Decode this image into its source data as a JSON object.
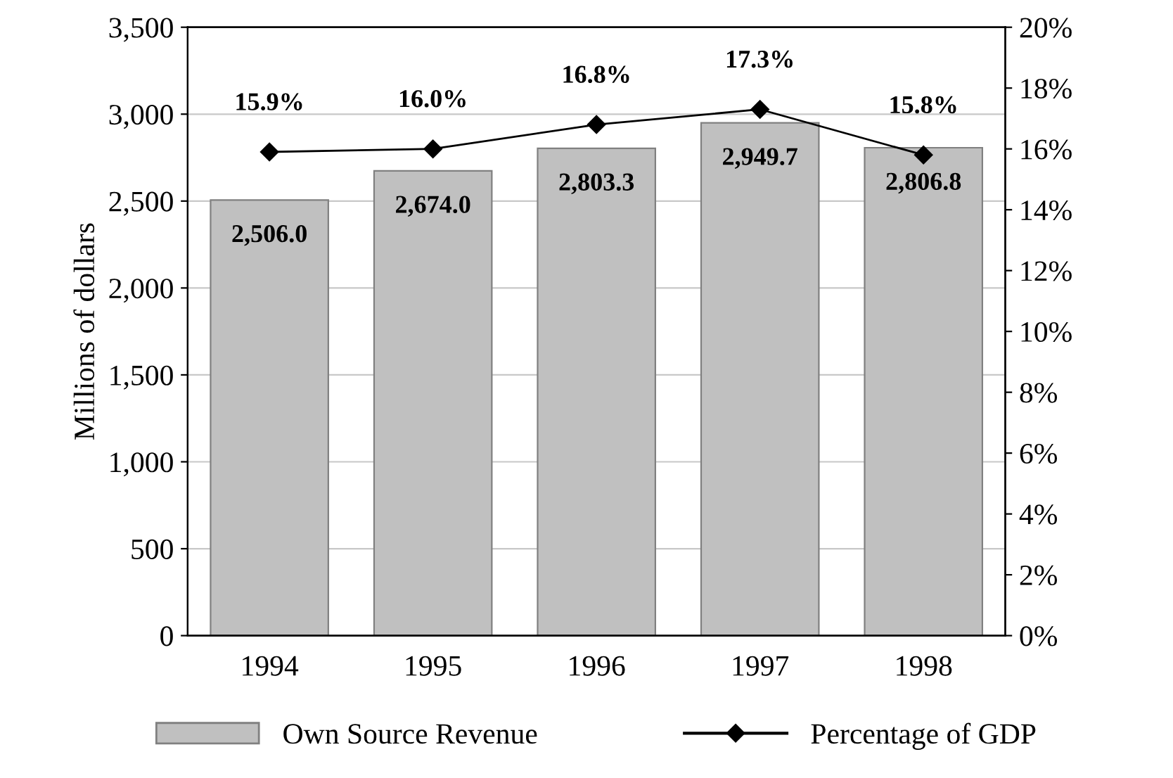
{
  "chart_data": {
    "type": "bar",
    "ylabel": "Millions of dollars",
    "categories": [
      "1994",
      "1995",
      "1996",
      "1997",
      "1998"
    ],
    "series": [
      {
        "name": "Own Source Revenue",
        "color": "#c0c0c0",
        "values": [
          2506.0,
          2674.0,
          2803.3,
          2949.7,
          2806.8
        ],
        "value_labels": [
          "2,506.0",
          "2,674.0",
          "2,803.3",
          "2,949.7",
          "2,806.8"
        ]
      },
      {
        "name": "Percentage of GDP",
        "type": "line",
        "axis": "y2",
        "color": "#000000",
        "marker": "diamond",
        "values": [
          15.9,
          16.0,
          16.8,
          17.3,
          15.8
        ],
        "value_labels": [
          "15.9%",
          "16.0%",
          "16.8%",
          "17.3%",
          "15.8%"
        ]
      }
    ],
    "ylim": [
      0,
      3500
    ],
    "yticks": [
      {
        "value": 0,
        "label": "0"
      },
      {
        "value": 500,
        "label": "500"
      },
      {
        "value": 1000,
        "label": "1,000"
      },
      {
        "value": 1500,
        "label": "1,500"
      },
      {
        "value": 2000,
        "label": "2,000"
      },
      {
        "value": 2500,
        "label": "2,500"
      },
      {
        "value": 3000,
        "label": "3,000"
      },
      {
        "value": 3500,
        "label": "3,500"
      }
    ],
    "y2lim": [
      0,
      20
    ],
    "y2ticks": [
      {
        "value": 0,
        "label": "0%"
      },
      {
        "value": 2,
        "label": "2%"
      },
      {
        "value": 4,
        "label": "4%"
      },
      {
        "value": 6,
        "label": "6%"
      },
      {
        "value": 8,
        "label": "8%"
      },
      {
        "value": 10,
        "label": "10%"
      },
      {
        "value": 12,
        "label": "12%"
      },
      {
        "value": 14,
        "label": "14%"
      },
      {
        "value": 16,
        "label": "16%"
      },
      {
        "value": 18,
        "label": "18%"
      },
      {
        "value": 20,
        "label": "20%"
      }
    ],
    "grid": "y",
    "legend": "bottom"
  }
}
